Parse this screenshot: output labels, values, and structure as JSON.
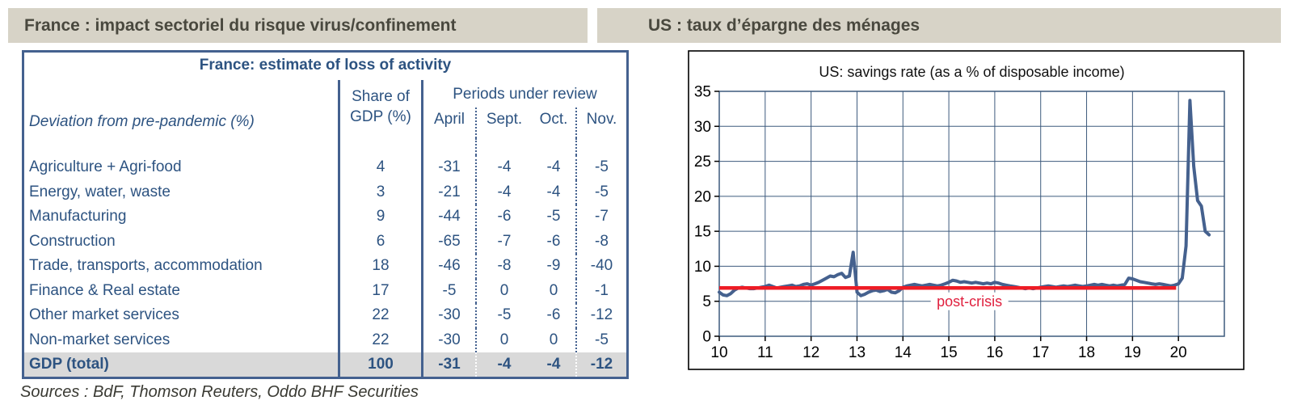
{
  "headers": {
    "left": "France : impact sectoriel du risque virus/confinement",
    "right": "US : taux d’épargne des ménages",
    "bar_bg": "#d7d3c7",
    "text_color": "#49483e"
  },
  "table": {
    "title": "France: estimate of loss of activity",
    "row_label_header": "Deviation from pre-pandemic (%)",
    "share_header_line1": "Share of",
    "share_header_line2": "GDP (%)",
    "periods_header": "Periods under review",
    "period_cols": [
      "April",
      "Sept.",
      "Oct.",
      "Nov."
    ],
    "rows": [
      {
        "name": "Agriculture + Agri-food",
        "share": "4",
        "values": [
          "-31",
          "-4",
          "-4",
          "-5"
        ]
      },
      {
        "name": "Energy, water, waste",
        "share": "3",
        "values": [
          "-21",
          "-4",
          "-4",
          "-5"
        ]
      },
      {
        "name": "Manufacturing",
        "share": "9",
        "values": [
          "-44",
          "-6",
          "-5",
          "-7"
        ]
      },
      {
        "name": "Construction",
        "share": "6",
        "values": [
          "-65",
          "-7",
          "-6",
          "-8"
        ]
      },
      {
        "name": "Trade, transports, accommodation",
        "share": "18",
        "values": [
          "-46",
          "-8",
          "-9",
          "-40"
        ]
      },
      {
        "name": "Finance & Real estate",
        "share": "17",
        "values": [
          "-5",
          "0",
          "0",
          "-1"
        ]
      },
      {
        "name": "Other market services",
        "share": "22",
        "values": [
          "-30",
          "-5",
          "-6",
          "-12"
        ]
      },
      {
        "name": "Non-market services",
        "share": "22",
        "values": [
          "-30",
          "0",
          "0",
          "-5"
        ]
      }
    ],
    "total_row": {
      "name": "GDP (total)",
      "share": "100",
      "values": [
        "-31",
        "-4",
        "-4",
        "-12"
      ]
    },
    "accent_color": "#2d5381",
    "border_color": "#44618f",
    "total_row_bg": "#d9d9d9"
  },
  "sources": "Sources : BdF, Thomson Reuters, Oddo BHF Securities",
  "chart_data": {
    "type": "line",
    "title": "US: savings rate (as a % of disposable income)",
    "xlabel": "",
    "ylabel": "",
    "ylim": [
      0,
      35
    ],
    "yticks": [
      0,
      5,
      10,
      15,
      20,
      25,
      30,
      35
    ],
    "xlim": [
      2010,
      2021
    ],
    "xticks": [
      2010,
      2011,
      2012,
      2013,
      2014,
      2015,
      2016,
      2017,
      2018,
      2019,
      2020
    ],
    "xtick_labels": [
      "10",
      "11",
      "12",
      "13",
      "14",
      "15",
      "16",
      "17",
      "18",
      "19",
      "20"
    ],
    "grid": true,
    "grid_color": "#3d5a7d",
    "axis_color": "#000000",
    "series": [
      {
        "name": "US savings rate (% of disposable income), monthly",
        "color": "#45618e",
        "x_start": 2010.0,
        "x_step": 0.083333,
        "values": [
          6.3,
          5.9,
          5.8,
          6.1,
          6.6,
          6.9,
          7.0,
          6.9,
          6.8,
          6.8,
          6.9,
          7.0,
          7.1,
          7.3,
          7.1,
          6.9,
          7.0,
          7.1,
          7.2,
          7.3,
          7.1,
          7.2,
          7.4,
          7.5,
          7.3,
          7.5,
          7.7,
          8.0,
          8.3,
          8.6,
          8.5,
          8.8,
          9.0,
          8.4,
          8.6,
          12.0,
          6.3,
          5.8,
          6.0,
          6.3,
          6.5,
          6.6,
          6.4,
          6.5,
          6.7,
          6.3,
          6.2,
          6.5,
          7.0,
          7.2,
          7.3,
          7.4,
          7.3,
          7.2,
          7.3,
          7.4,
          7.3,
          7.2,
          7.3,
          7.5,
          7.7,
          8.0,
          7.9,
          7.7,
          7.8,
          7.7,
          7.6,
          7.7,
          7.6,
          7.5,
          7.6,
          7.5,
          7.7,
          7.6,
          7.4,
          7.3,
          7.2,
          7.1,
          7.0,
          6.9,
          6.8,
          6.9,
          6.8,
          6.9,
          7.0,
          7.1,
          7.2,
          7.1,
          7.0,
          7.1,
          7.2,
          7.1,
          7.2,
          7.3,
          7.2,
          7.1,
          7.2,
          7.3,
          7.4,
          7.3,
          7.4,
          7.3,
          7.2,
          7.3,
          7.2,
          7.3,
          7.4,
          8.3,
          8.2,
          8.0,
          7.8,
          7.7,
          7.6,
          7.5,
          7.4,
          7.5,
          7.4,
          7.3,
          7.2,
          7.3,
          7.5,
          8.3,
          12.9,
          33.7,
          24.3,
          19.4,
          18.6,
          15.0,
          14.5
        ]
      }
    ],
    "reference_line": {
      "label": "post-crisis",
      "value": 6.9,
      "color": "#ee1c25",
      "label_color": "#e01f3d",
      "x_from": 2010.0,
      "x_to": 2019.95,
      "label_x": 2015.45,
      "label_y": 5
    },
    "legend": "none"
  }
}
